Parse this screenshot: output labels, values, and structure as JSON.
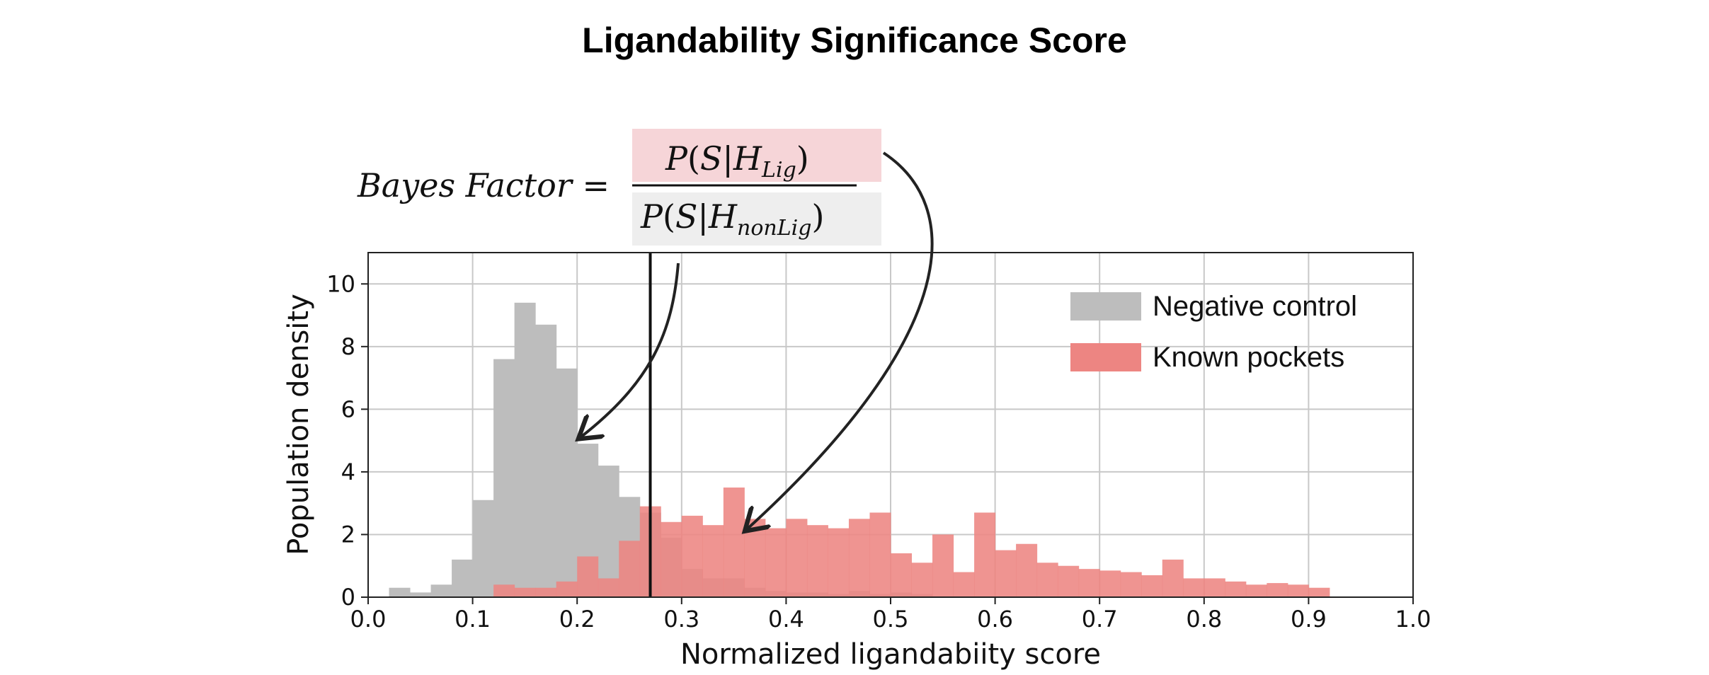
{
  "title": "Ligandability Significance Score",
  "formula": {
    "lhs": "Bayes Factor =",
    "numerator": {
      "P": "P",
      "S": "S",
      "H": "H",
      "sub": "Lig"
    },
    "denominator": {
      "P": "P",
      "S": "S",
      "H": "H",
      "sub": "nonLig"
    },
    "numerator_highlight": "#f6d5d8",
    "denominator_highlight": "#eeeeee"
  },
  "chart_data": {
    "type": "histogram",
    "xlabel": "Normalized ligandabiity score",
    "ylabel": "Population density",
    "xlim": [
      0.0,
      1.0
    ],
    "ylim": [
      0,
      11
    ],
    "xticks": [
      "0.0",
      "0.1",
      "0.2",
      "0.3",
      "0.4",
      "0.5",
      "0.6",
      "0.7",
      "0.8",
      "0.9",
      "1.0"
    ],
    "yticks": [
      "0",
      "2",
      "4",
      "6",
      "8",
      "10"
    ],
    "grid": true,
    "legend_position": "top-right",
    "threshold_x": 0.27,
    "bin_width": 0.02,
    "series": [
      {
        "name": "Negative control",
        "color": "#bdbdbd",
        "bins_start": 0.02,
        "values": [
          0.3,
          0.15,
          0.4,
          1.2,
          3.1,
          7.6,
          9.4,
          8.7,
          7.3,
          4.9,
          4.2,
          3.2,
          2.7,
          1.9,
          0.9,
          0.6,
          0.6,
          0.3,
          0.2,
          0.15,
          0.15,
          0.1,
          0.2,
          0.1,
          0.15,
          0.1
        ]
      },
      {
        "name": "Known pockets",
        "color": "#ed8582",
        "bins_start": 0.12,
        "values": [
          0.4,
          0.3,
          0.3,
          0.5,
          1.3,
          0.6,
          1.8,
          2.9,
          2.4,
          2.6,
          2.3,
          3.5,
          2.5,
          2.2,
          2.5,
          2.3,
          2.2,
          2.5,
          2.7,
          1.4,
          1.1,
          2.0,
          0.8,
          2.7,
          1.5,
          1.7,
          1.1,
          1.0,
          0.9,
          0.85,
          0.8,
          0.7,
          1.2,
          0.6,
          0.6,
          0.5,
          0.4,
          0.45,
          0.4,
          0.3
        ]
      }
    ]
  }
}
